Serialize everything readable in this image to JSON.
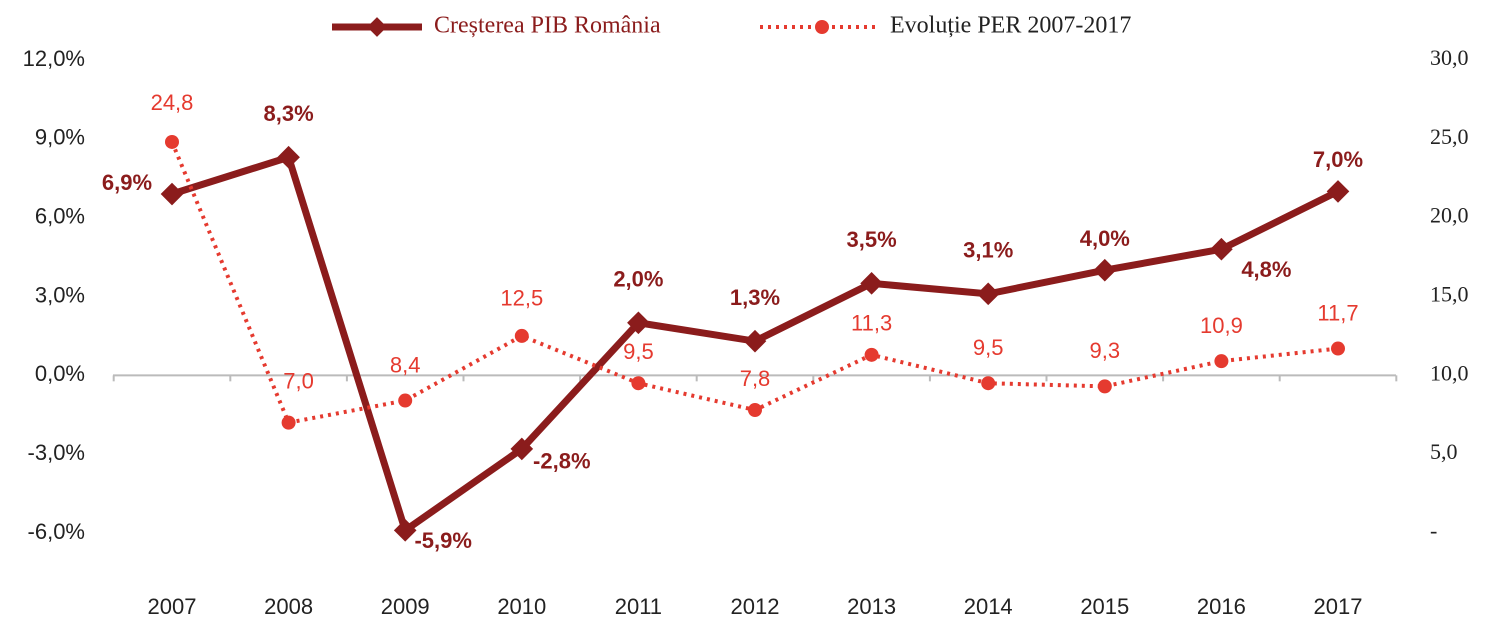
{
  "chart_data": {
    "type": "line",
    "categories": [
      "2007",
      "2008",
      "2009",
      "2010",
      "2011",
      "2012",
      "2013",
      "2014",
      "2015",
      "2016",
      "2017"
    ],
    "series": [
      {
        "name": "Creșterea PIB România",
        "color": "#8b1c1c",
        "values": [
          6.9,
          8.3,
          -5.9,
          -2.8,
          2.0,
          1.3,
          3.5,
          3.1,
          4.0,
          4.8,
          7.0
        ],
        "value_labels": [
          "6,9%",
          "8,3%",
          "-5,9%",
          "-2,8%",
          "2,0%",
          "1,3%",
          "3,5%",
          "3,1%",
          "4,0%",
          "4,8%",
          "7,0%"
        ]
      },
      {
        "name": "Evoluție PER 2007-2017",
        "color": "#e53a2f",
        "axis": "y2",
        "values": [
          24.8,
          7.0,
          8.4,
          12.5,
          9.5,
          7.8,
          11.3,
          9.5,
          9.3,
          10.9,
          11.7
        ],
        "value_labels": [
          "24,8",
          "7,0",
          "8,4",
          "12,5",
          "9,5",
          "7,8",
          "11,3",
          "9,5",
          "9,3",
          "10,9",
          "11,7"
        ]
      }
    ],
    "ylim": [
      -6,
      12
    ],
    "yticks": [
      {
        "value": -6,
        "label": "-6,0%"
      },
      {
        "value": -3,
        "label": "-3,0%"
      },
      {
        "value": 0,
        "label": "0,0%"
      },
      {
        "value": 3,
        "label": "3,0%"
      },
      {
        "value": 6,
        "label": "6,0%"
      },
      {
        "value": 9,
        "label": "9,0%"
      },
      {
        "value": 12,
        "label": "12,0%"
      }
    ],
    "y2lim": [
      0,
      30
    ],
    "y2ticks": [
      {
        "value": 0,
        "label": "-"
      },
      {
        "value": 5,
        "label": "5,0"
      },
      {
        "value": 10,
        "label": "10,0"
      },
      {
        "value": 15,
        "label": "15,0"
      },
      {
        "value": 20,
        "label": "20,0"
      },
      {
        "value": 25,
        "label": "25,0"
      },
      {
        "value": 30,
        "label": "30,0"
      }
    ],
    "legend": "top"
  }
}
